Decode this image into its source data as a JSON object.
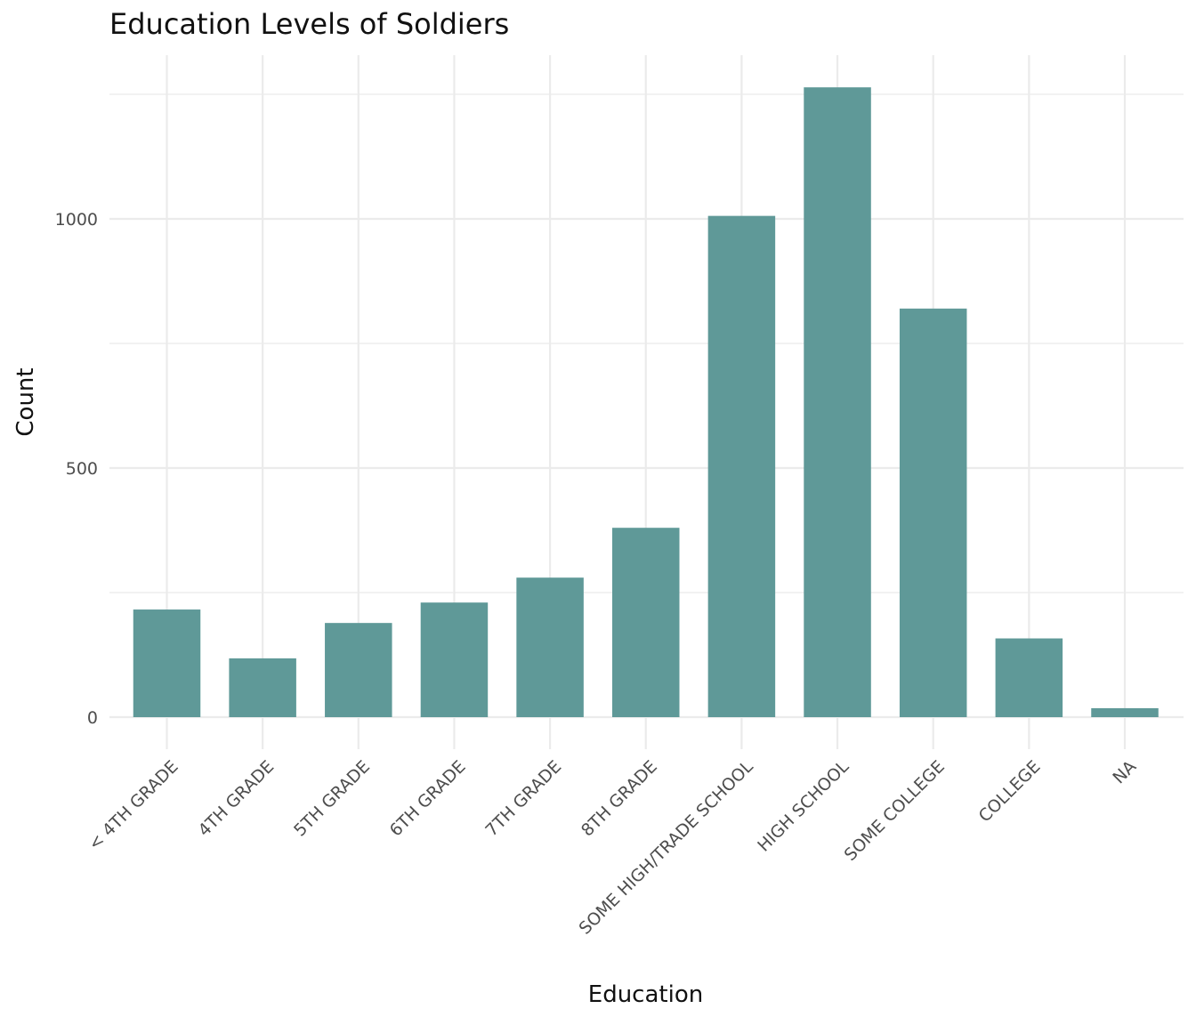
{
  "chart_data": {
    "type": "bar",
    "title": "Education Levels of Soldiers",
    "xlabel": "Education",
    "ylabel": "Count",
    "categories": [
      "< 4TH GRADE",
      "4TH GRADE",
      "5TH GRADE",
      "6TH GRADE",
      "7TH GRADE",
      "8TH GRADE",
      "SOME HIGH/TRADE SCHOOL",
      "HIGH SCHOOL",
      "SOME COLLEGE",
      "COLLEGE",
      "NA"
    ],
    "values": [
      216,
      118,
      189,
      230,
      280,
      380,
      1006,
      1264,
      820,
      158,
      18
    ],
    "ylim": [
      0,
      1250
    ],
    "yticks": [
      0,
      500,
      1000
    ],
    "grid": true,
    "bar_color": "#5f9998",
    "grid_color": "#ebebeb"
  }
}
